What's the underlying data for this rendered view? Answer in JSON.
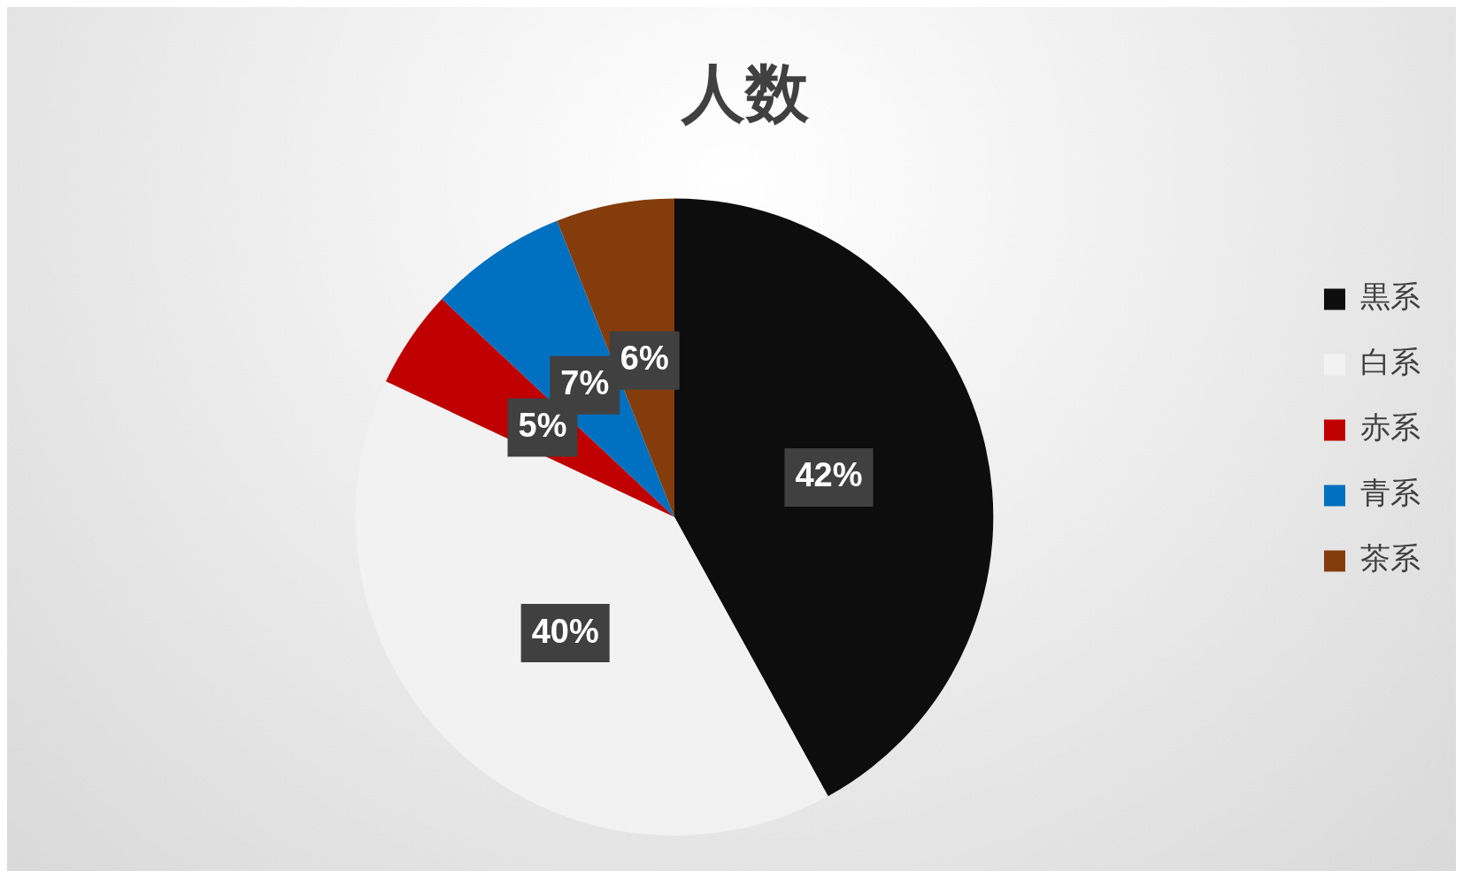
{
  "chart_data": {
    "type": "pie",
    "title": "人数",
    "categories": [
      "黒系",
      "白系",
      "赤系",
      "青系",
      "茶系"
    ],
    "values": [
      42,
      40,
      5,
      7,
      6
    ],
    "colors": [
      "#0d0d0d",
      "#f2f2f2",
      "#c00000",
      "#0070c0",
      "#843c0c"
    ],
    "value_labels": [
      "42%",
      "40%",
      "5%",
      "7%",
      "6%"
    ],
    "legend": "right"
  }
}
